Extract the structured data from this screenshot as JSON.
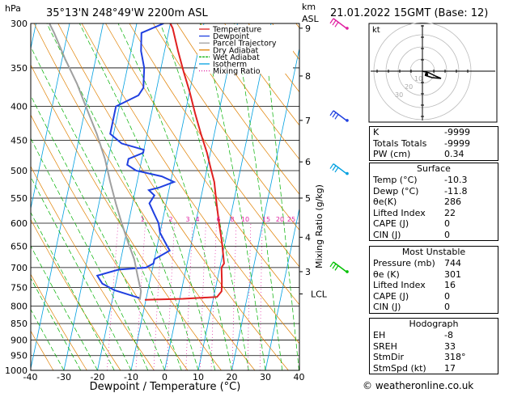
{
  "header": {
    "location": "35°13'N  248°49'W  2200m  ASL",
    "datetime": "21.01.2022  15GMT  (Base: 12)",
    "hpa_label": "hPa",
    "km_label": "km",
    "asl_label": "ASL"
  },
  "chart_data": {
    "type": "line",
    "xlabel": "Dewpoint / Temperature (°C)",
    "ylabel_right": "Mixing Ratio (g/kg)",
    "x_ticks": [
      -40,
      -30,
      -20,
      -10,
      0,
      10,
      20,
      30,
      40
    ],
    "pressure_levels": [
      300,
      350,
      400,
      450,
      500,
      550,
      600,
      650,
      700,
      750,
      800,
      850,
      900,
      950,
      1000
    ],
    "km_ticks": [
      {
        "label": "9",
        "p": 305
      },
      {
        "label": "8",
        "p": 360
      },
      {
        "label": "7",
        "p": 420
      },
      {
        "label": "6",
        "p": 485
      },
      {
        "label": "5",
        "p": 550
      },
      {
        "label": "4",
        "p": 630
      },
      {
        "label": "3",
        "p": 710
      },
      {
        "label": "LCL",
        "p": 767
      }
    ],
    "mixing_ratio_labels": [
      "1",
      "2",
      "3",
      "4",
      "6",
      "8",
      "10",
      "15",
      "20",
      "25"
    ],
    "mixing_ratio_values": [
      1,
      2,
      3,
      4,
      6,
      8,
      10,
      15,
      20,
      25
    ],
    "legend": [
      {
        "name": "Temperature",
        "color": "#e02020"
      },
      {
        "name": "Dewpoint",
        "color": "#2040e0"
      },
      {
        "name": "Parcel Trajectory",
        "color": "#a0a0a0"
      },
      {
        "name": "Dry Adiabat",
        "color": "#e08000"
      },
      {
        "name": "Wet Adiabat",
        "color": "#00b000"
      },
      {
        "name": "Isotherm",
        "color": "#00a0e0"
      },
      {
        "name": "Mixing Ratio",
        "color": "#e020a0"
      }
    ],
    "series": [
      {
        "name": "Temperature",
        "points": [
          [
            -10.3,
            783
          ],
          [
            1,
            780
          ],
          [
            11,
            775
          ],
          [
            12,
            760
          ],
          [
            11.5,
            735
          ],
          [
            10.5,
            700
          ],
          [
            11,
            690
          ],
          [
            9,
            640
          ],
          [
            7,
            600
          ],
          [
            5,
            560
          ],
          [
            3,
            520
          ],
          [
            1,
            495
          ],
          [
            -1,
            470
          ],
          [
            -4,
            440
          ],
          [
            -7,
            410
          ],
          [
            -10,
            380
          ],
          [
            -13,
            355
          ],
          [
            -16,
            330
          ],
          [
            -19,
            305
          ],
          [
            -20,
            300
          ]
        ]
      },
      {
        "name": "Dewpoint",
        "points": [
          [
            -11.8,
            780
          ],
          [
            -12,
            778
          ],
          [
            -20,
            757
          ],
          [
            -24,
            740
          ],
          [
            -26,
            720
          ],
          [
            -20,
            705
          ],
          [
            -12,
            700
          ],
          [
            -10,
            690
          ],
          [
            -10,
            680
          ],
          [
            -6,
            660
          ],
          [
            -8,
            640
          ],
          [
            -10,
            620
          ],
          [
            -11,
            600
          ],
          [
            -13,
            580
          ],
          [
            -15,
            560
          ],
          [
            -14,
            545
          ],
          [
            -16,
            535
          ],
          [
            -13,
            530
          ],
          [
            -9,
            520
          ],
          [
            -13,
            510
          ],
          [
            -21,
            500
          ],
          [
            -24,
            490
          ],
          [
            -24,
            480
          ],
          [
            -20,
            470
          ],
          [
            -20,
            465
          ],
          [
            -27,
            455
          ],
          [
            -31,
            440
          ],
          [
            -31,
            425
          ],
          [
            -31,
            400
          ],
          [
            -29,
            395
          ],
          [
            -25,
            385
          ],
          [
            -24,
            375
          ],
          [
            -25,
            350
          ],
          [
            -27,
            330
          ],
          [
            -28,
            310
          ],
          [
            -22,
            300
          ]
        ]
      },
      {
        "name": "Parcel Trajectory",
        "points": [
          [
            -11.8,
            783
          ],
          [
            -12,
            760
          ],
          [
            -14,
            720
          ],
          [
            -16,
            680
          ],
          [
            -19,
            640
          ],
          [
            -22,
            600
          ],
          [
            -25,
            560
          ],
          [
            -28,
            520
          ],
          [
            -31,
            480
          ],
          [
            -35,
            440
          ],
          [
            -40,
            400
          ],
          [
            -44,
            370
          ],
          [
            -49,
            340
          ],
          [
            -54,
            310
          ],
          [
            -56,
            300
          ]
        ]
      }
    ],
    "hodograph": {
      "label": "kt",
      "ring_labels": [
        "10",
        "20",
        "30"
      ]
    }
  },
  "indices": [
    {
      "label": "K",
      "value": "-9999"
    },
    {
      "label": "Totals Totals",
      "value": "-9999"
    },
    {
      "label": "PW (cm)",
      "value": "0.34"
    }
  ],
  "surface": {
    "title": "Surface",
    "rows": [
      {
        "label": "Temp (°C)",
        "value": "-10.3"
      },
      {
        "label": "Dewp (°C)",
        "value": "-11.8"
      },
      {
        "label": "θe(K)",
        "value": "286"
      },
      {
        "label": "Lifted Index",
        "value": "22"
      },
      {
        "label": "CAPE (J)",
        "value": "0"
      },
      {
        "label": "CIN (J)",
        "value": "0"
      }
    ]
  },
  "most_unstable": {
    "title": "Most Unstable",
    "rows": [
      {
        "label": "Pressure (mb)",
        "value": "744"
      },
      {
        "label": "θe (K)",
        "value": "301"
      },
      {
        "label": "Lifted Index",
        "value": "16"
      },
      {
        "label": "CAPE (J)",
        "value": "0"
      },
      {
        "label": "CIN (J)",
        "value": "0"
      }
    ]
  },
  "hodograph_table": {
    "title": "Hodograph",
    "rows": [
      {
        "label": "EH",
        "value": "-8"
      },
      {
        "label": "SREH",
        "value": "33"
      },
      {
        "label": "StmDir",
        "value": "318°"
      },
      {
        "label": "StmSpd (kt)",
        "value": "17"
      }
    ]
  },
  "footer": "© weatheronline.co.uk"
}
